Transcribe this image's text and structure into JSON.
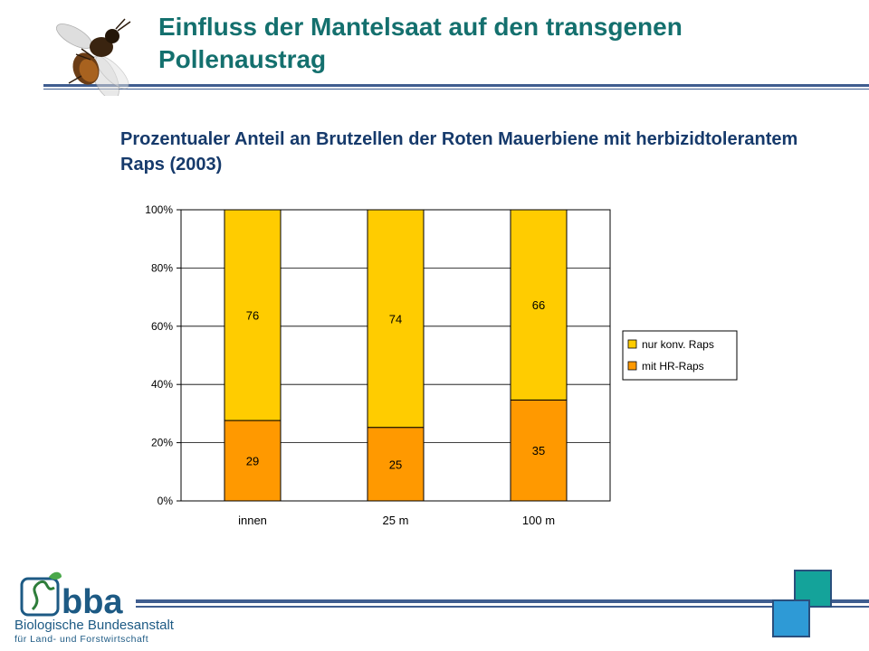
{
  "slide": {
    "title": "Einfluss der Mantelsaat auf den transgenen Pollenaustrag",
    "chart_heading": "Prozentualer Anteil an Brutzellen der Roten Mauerbiene mit herbizidtolerantem Raps (2003)"
  },
  "logo": {
    "wordmark": "bba",
    "line1": "Biologische Bundesanstalt",
    "line2": "für Land- und Forstwirtschaft"
  },
  "colors": {
    "title": "#14706e",
    "heading": "#163a6b",
    "rule": "#3f5d8f",
    "konv": "#ffcc00",
    "hr": "#ff9900"
  },
  "chart_data": {
    "type": "bar",
    "stacked": true,
    "percent_stacked": true,
    "categories": [
      "innen",
      "25 m",
      "100 m"
    ],
    "series": [
      {
        "name": "mit HR-Raps",
        "values": [
          29,
          25,
          35
        ],
        "color": "#ff9900"
      },
      {
        "name": "nur konv. Raps",
        "values": [
          76,
          74,
          66
        ],
        "color": "#ffcc00"
      }
    ],
    "ylim": [
      0,
      100
    ],
    "yticks": [
      "0%",
      "20%",
      "40%",
      "60%",
      "80%",
      "100%"
    ],
    "grid": true,
    "legend_position": "right",
    "legend": [
      "nur konv. Raps",
      "mit HR-Raps"
    ]
  }
}
